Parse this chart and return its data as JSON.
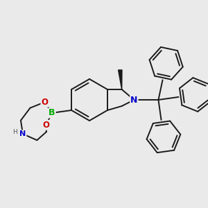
{
  "bg": "#eaeaea",
  "bc": "#1a1a1a",
  "bw": 1.4,
  "atom_colors": {
    "B": "#00aa00",
    "N": "#0000cc",
    "O": "#cc0000"
  },
  "afs": 8.0,
  "xlim": [
    0,
    10
  ],
  "ylim": [
    0,
    10
  ]
}
